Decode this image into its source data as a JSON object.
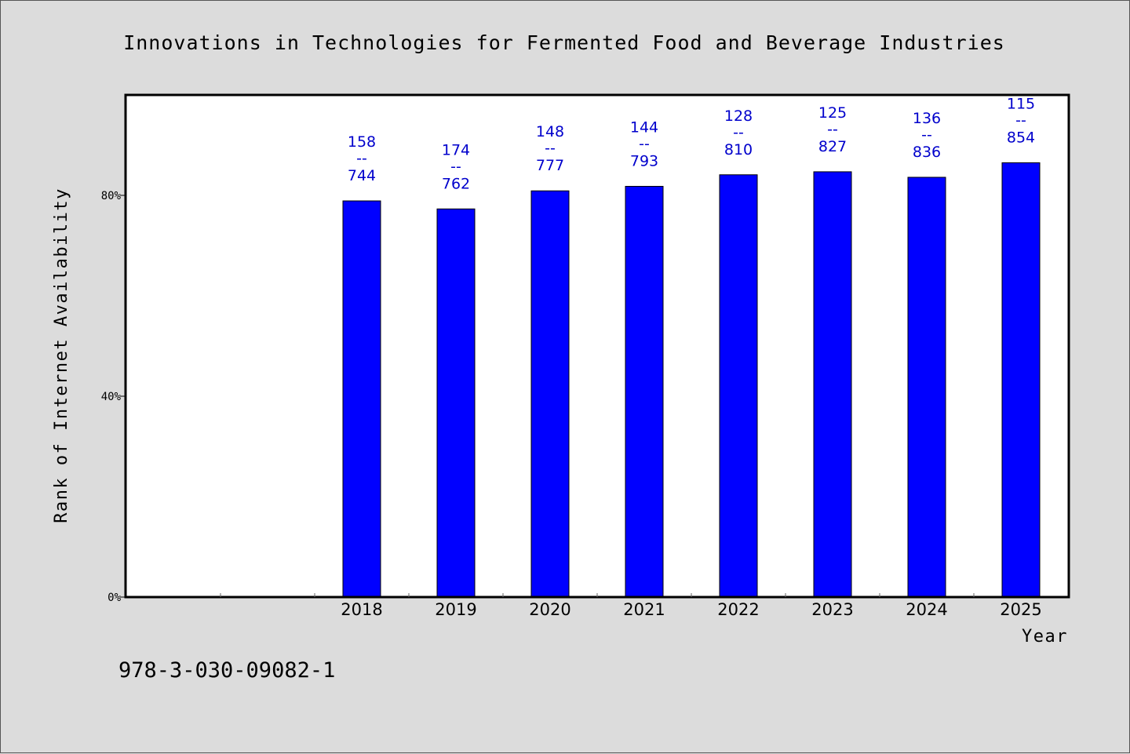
{
  "chart_data": {
    "type": "bar",
    "title": "Innovations in Technologies for Fermented Food and Beverage Industries",
    "xlabel": "Year",
    "ylabel": "Rank of Internet Availability",
    "categories": [
      "2018",
      "2019",
      "2020",
      "2021",
      "2022",
      "2023",
      "2024",
      "2025"
    ],
    "values": [
      78.9,
      77.3,
      80.9,
      81.8,
      84.1,
      84.7,
      83.6,
      86.5
    ],
    "data_labels": [
      {
        "top": "158",
        "sep": "--",
        "bottom": "744"
      },
      {
        "top": "174",
        "sep": "--",
        "bottom": "762"
      },
      {
        "top": "148",
        "sep": "--",
        "bottom": "777"
      },
      {
        "top": "144",
        "sep": "--",
        "bottom": "793"
      },
      {
        "top": "128",
        "sep": "--",
        "bottom": "810"
      },
      {
        "top": "125",
        "sep": "--",
        "bottom": "827"
      },
      {
        "top": "136",
        "sep": "--",
        "bottom": "836"
      },
      {
        "top": "115",
        "sep": "--",
        "bottom": "854"
      }
    ],
    "yticks": [
      {
        "value": 0,
        "label": "0%"
      },
      {
        "value": 40,
        "label": "40%"
      },
      {
        "value": 80,
        "label": "80%"
      }
    ],
    "ylim": [
      0,
      100
    ],
    "empty_leading_slots": 2,
    "grid": false,
    "bar_color": "#0000ff",
    "label_color": "#0000cc",
    "background_color": "#dcdcdc",
    "plot_background_color": "#ffffff"
  },
  "footer": {
    "isbn": "978-3-030-09082-1"
  }
}
